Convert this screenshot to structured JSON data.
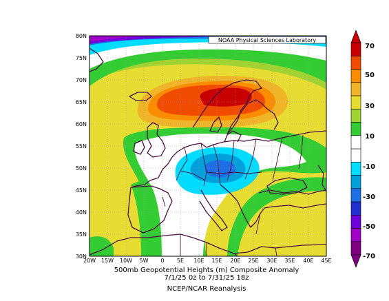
{
  "credit": "NOAA Physical Sciences Laboratory",
  "caption": {
    "line1": "500mb Geopotential Heights (m)    Composite Anomaly",
    "line2": "7/1/25 0z  to 7/31/25 18z",
    "line3": "NCEP/NCAR Reanalysis"
  },
  "axes": {
    "lat_labels": [
      "80N",
      "75N",
      "70N",
      "65N",
      "60N",
      "55N",
      "50N",
      "45N",
      "40N",
      "35N",
      "30N"
    ],
    "lon_labels": [
      "20W",
      "15W",
      "10W",
      "5W",
      "0",
      "5E",
      "10E",
      "15E",
      "20E",
      "25E",
      "30E",
      "35E",
      "40E",
      "45E"
    ]
  },
  "colorbar": {
    "labels": [
      "70",
      "50",
      "30",
      "10",
      "-10",
      "-30",
      "-50",
      "-70"
    ],
    "colors": [
      "#800080",
      "#a000c8",
      "#6e00dc",
      "#2030d0",
      "#1e6ee6",
      "#00a0dc",
      "#00dcff",
      "#ffffff",
      "#ffffff",
      "#33cc33",
      "#a0d232",
      "#e6dc32",
      "#f0b428",
      "#fa8c00",
      "#f04b00",
      "#c80000"
    ]
  }
}
